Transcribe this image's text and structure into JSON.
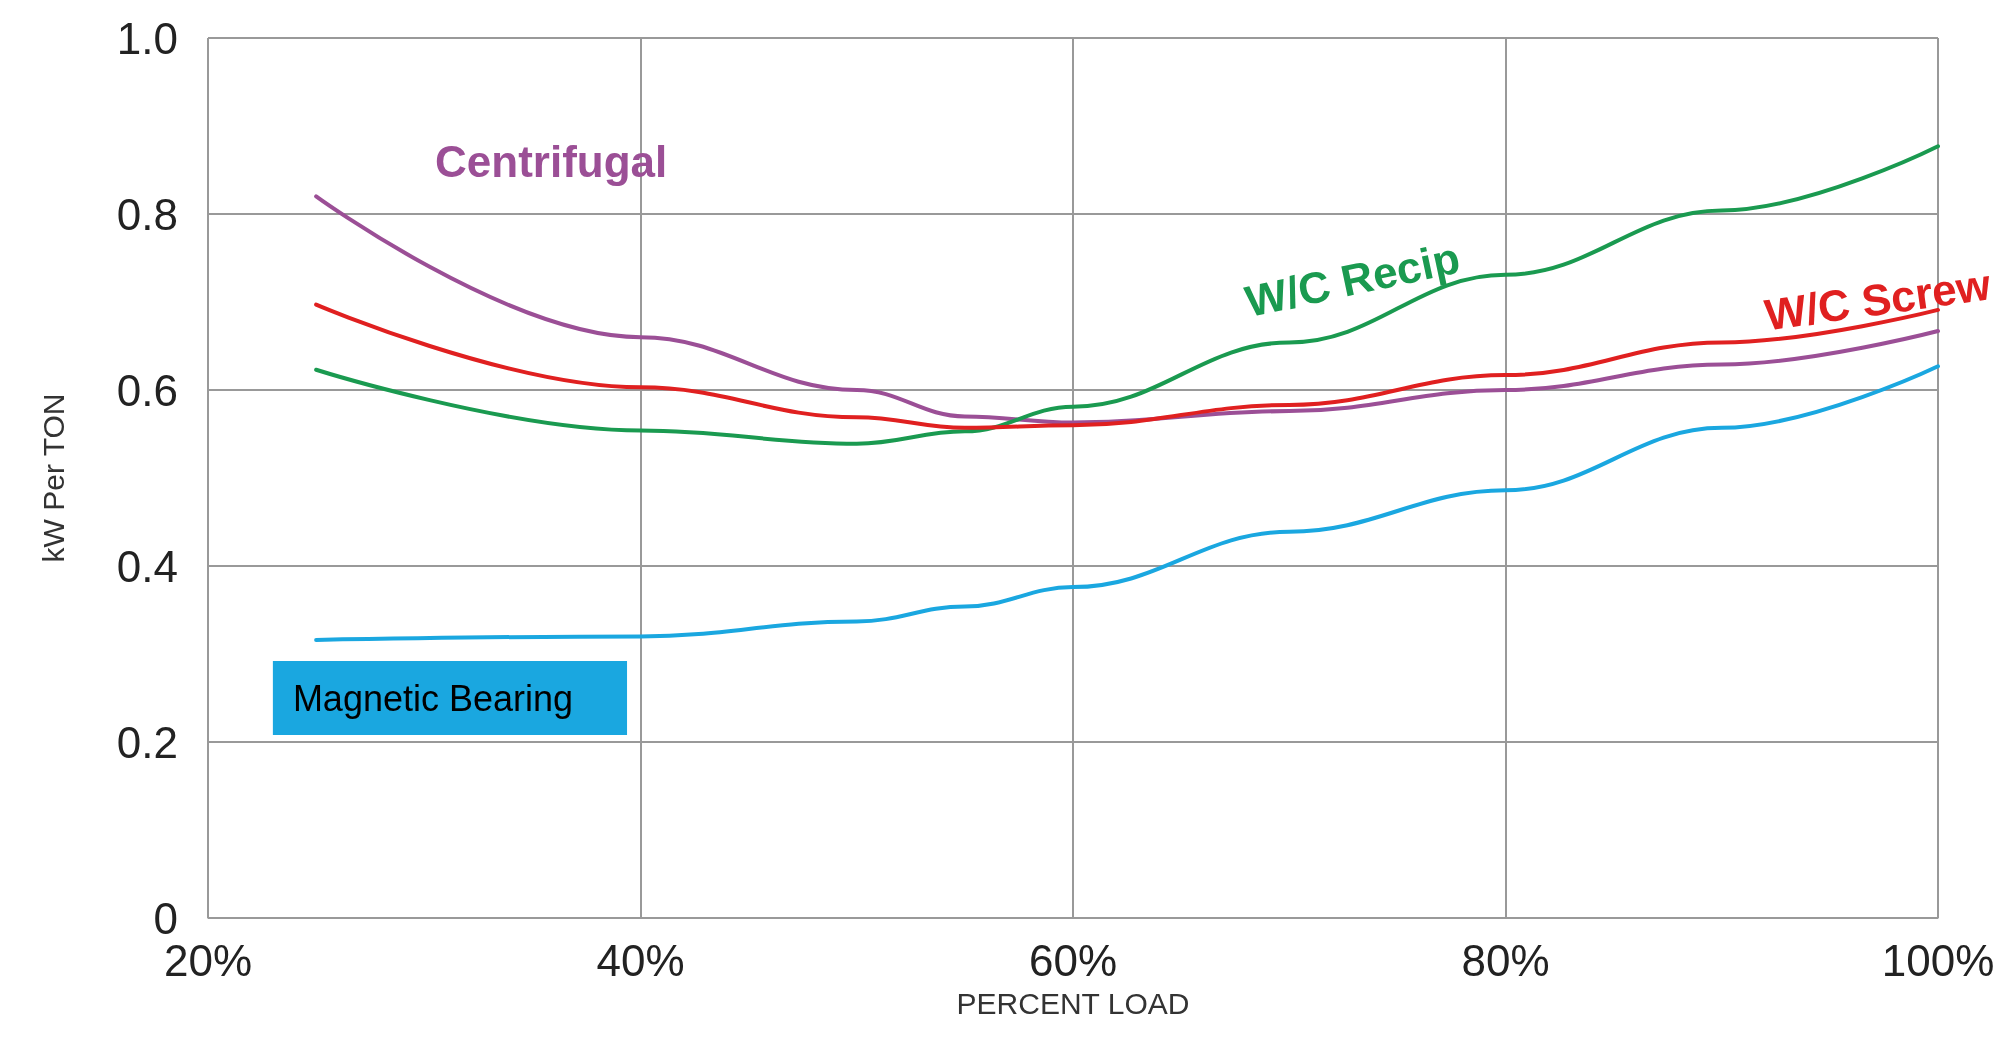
{
  "chart_data": {
    "type": "line",
    "xlabel": "PERCENT LOAD",
    "ylabel": "kW Per TON",
    "xlim": [
      20,
      100
    ],
    "xticks": [
      {
        "value": 20,
        "label": "20%"
      },
      {
        "value": 40,
        "label": "40%"
      },
      {
        "value": 60,
        "label": "60%"
      },
      {
        "value": 80,
        "label": "80%"
      },
      {
        "value": 100,
        "label": "100%"
      }
    ],
    "ylim": [
      0,
      1
    ],
    "yticks": [
      0,
      0.2,
      0.4,
      0.6,
      0.8,
      {
        "value": 1,
        "label": "1.0"
      }
    ],
    "grid": true,
    "legend": false,
    "marker": "none",
    "line_style": "solid",
    "x": [
      25,
      40,
      50,
      55,
      60,
      70,
      80,
      90,
      100
    ],
    "series": [
      {
        "name": "Centrifugal",
        "color": "#9b4f96",
        "values": [
          0.82,
          0.66,
          0.6,
          0.57,
          0.563,
          0.576,
          0.6,
          0.629,
          0.667
        ]
      },
      {
        "name": "W/C Recip",
        "color": "#1a9a50",
        "values": [
          0.623,
          0.554,
          0.539,
          0.553,
          0.581,
          0.654,
          0.731,
          0.804,
          0.877
        ]
      },
      {
        "name": "W/C Screw",
        "color": "#e02020",
        "values": [
          0.697,
          0.603,
          0.569,
          0.557,
          0.56,
          0.583,
          0.617,
          0.654,
          0.691
        ]
      },
      {
        "name": "Magnetic Bearing",
        "color": "#1aa7e0",
        "values": [
          0.316,
          0.32,
          0.337,
          0.354,
          0.376,
          0.439,
          0.486,
          0.557,
          0.627
        ]
      }
    ]
  }
}
